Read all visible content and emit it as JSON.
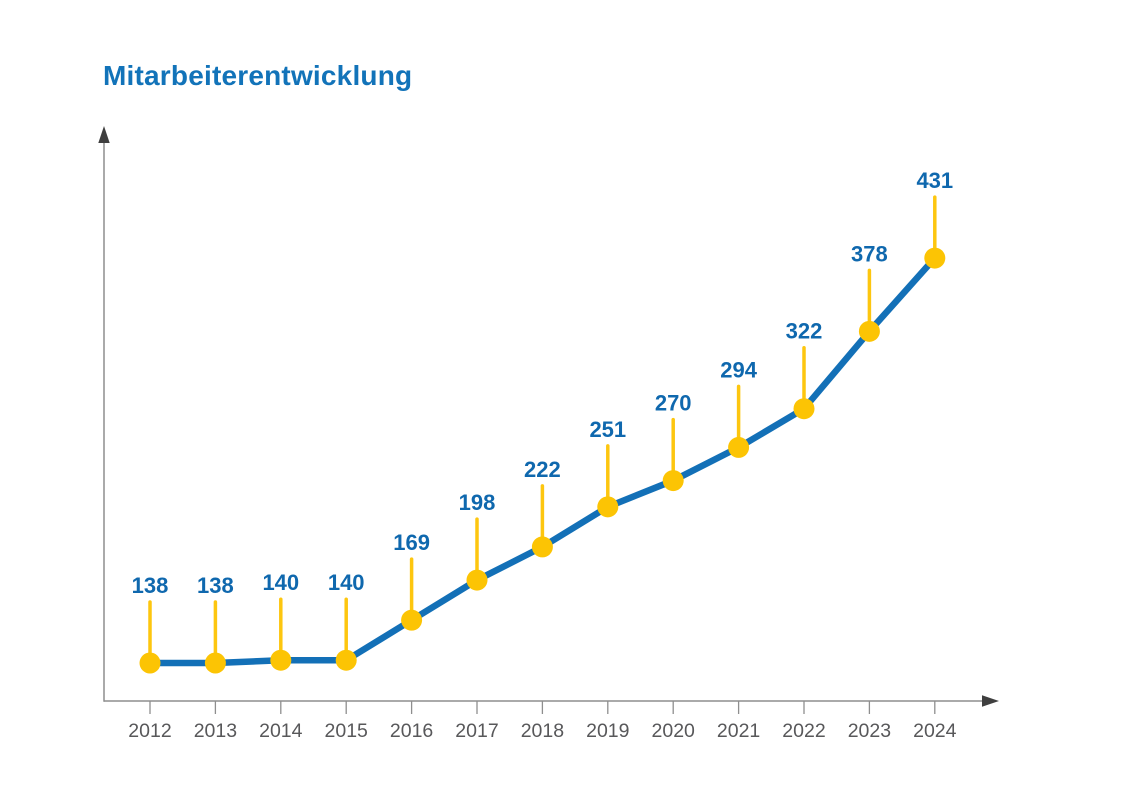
{
  "chart_data": {
    "type": "line",
    "title": "Mitarbeiterentwicklung",
    "categories": [
      "2012",
      "2013",
      "2014",
      "2015",
      "2016",
      "2017",
      "2018",
      "2019",
      "2020",
      "2021",
      "2022",
      "2023",
      "2024"
    ],
    "values": [
      138,
      138,
      140,
      140,
      169,
      198,
      222,
      251,
      270,
      294,
      322,
      378,
      431
    ],
    "xlabel": "",
    "ylabel": "",
    "legend": "none",
    "grid": false,
    "y_axis_tick_labels_visible": false,
    "value_labels_visible": true,
    "marker_style": "lollipop",
    "colors": {
      "title": "#1273B9",
      "line": "#1370B7",
      "marker": "#FCC404",
      "stem": "#FDC60F",
      "value_label": "#0F68AE",
      "axis": "#8E8E8E",
      "arrow": "#3F3F3F",
      "tick_label": "#58585A"
    }
  }
}
